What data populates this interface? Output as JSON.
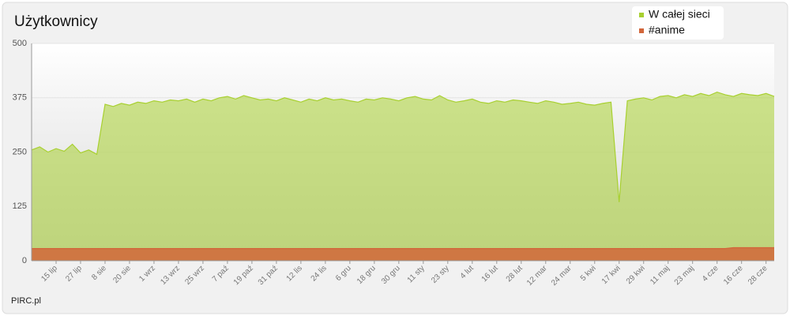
{
  "chart_data": {
    "type": "area",
    "title": "Użytkownicy",
    "source": "PIRC.pl",
    "categories": [
      null,
      null,
      null,
      "15 lip",
      null,
      null,
      "27 lip",
      null,
      null,
      "8 sie",
      null,
      null,
      "20 sie",
      null,
      null,
      "1 wrz",
      null,
      null,
      "13 wrz",
      null,
      null,
      "25 wrz",
      null,
      null,
      "7 paź",
      null,
      null,
      "19 paź",
      null,
      null,
      "31 paź",
      null,
      null,
      "12 lis",
      null,
      null,
      "24 lis",
      null,
      null,
      "6 gru",
      null,
      null,
      "18 gru",
      null,
      null,
      "30 gru",
      null,
      null,
      "11 sty",
      null,
      null,
      "23 sty",
      null,
      null,
      "4 lut",
      null,
      null,
      "16 lut",
      null,
      null,
      "28 lut",
      null,
      null,
      "12 mar",
      null,
      null,
      "24 mar",
      null,
      null,
      "5 kwi",
      null,
      null,
      "17 kwi",
      null,
      null,
      "29 kwi",
      null,
      null,
      "11 maj",
      null,
      null,
      "23 maj",
      null,
      null,
      "4 cze",
      null,
      null,
      "16 cze",
      null,
      null,
      "28 cze",
      null
    ],
    "series": [
      {
        "name": "W całej sieci",
        "color": "#a8d030",
        "values": [
          255,
          262,
          250,
          258,
          252,
          268,
          248,
          255,
          245,
          360,
          355,
          362,
          358,
          365,
          362,
          368,
          365,
          370,
          368,
          372,
          365,
          372,
          368,
          375,
          378,
          372,
          380,
          375,
          370,
          372,
          368,
          375,
          370,
          365,
          372,
          368,
          375,
          370,
          372,
          368,
          365,
          372,
          370,
          375,
          372,
          368,
          375,
          378,
          372,
          370,
          380,
          370,
          365,
          368,
          372,
          365,
          362,
          368,
          365,
          370,
          368,
          365,
          362,
          368,
          365,
          360,
          362,
          365,
          360,
          358,
          362,
          365,
          135,
          368,
          372,
          375,
          370,
          378,
          380,
          375,
          382,
          378,
          385,
          380,
          388,
          382,
          378,
          385,
          382,
          380,
          385,
          378
        ]
      },
      {
        "name": "#anime",
        "color": "#d2663a",
        "values": [
          28,
          28,
          28,
          28,
          28,
          28,
          28,
          28,
          28,
          28,
          28,
          28,
          28,
          28,
          28,
          28,
          28,
          28,
          28,
          28,
          28,
          28,
          28,
          28,
          28,
          28,
          28,
          28,
          28,
          28,
          28,
          28,
          28,
          28,
          28,
          28,
          28,
          28,
          28,
          28,
          28,
          28,
          28,
          28,
          28,
          28,
          28,
          28,
          28,
          28,
          28,
          28,
          28,
          28,
          28,
          28,
          28,
          28,
          28,
          28,
          28,
          28,
          28,
          28,
          28,
          28,
          28,
          28,
          28,
          28,
          28,
          28,
          28,
          28,
          28,
          28,
          28,
          28,
          28,
          28,
          28,
          28,
          28,
          28,
          28,
          28,
          30,
          30,
          30,
          30,
          30,
          30
        ]
      }
    ],
    "ylim": [
      0,
      500
    ],
    "yticks": [
      0,
      125,
      250,
      375,
      500
    ],
    "grid": true,
    "legend": "top-right"
  }
}
